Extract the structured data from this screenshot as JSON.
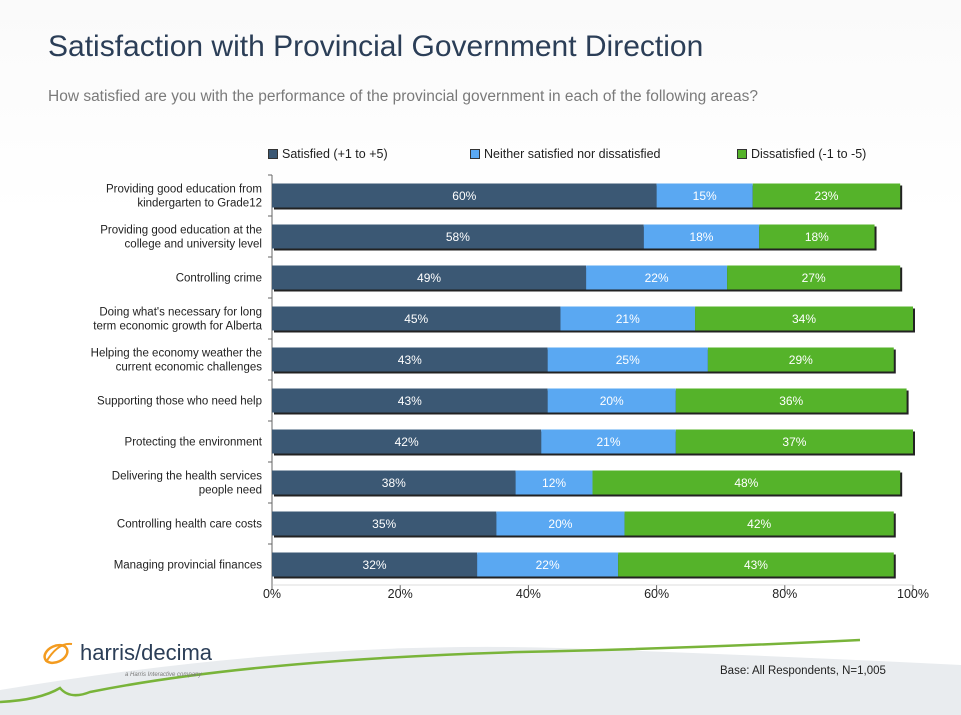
{
  "title": "Satisfaction with Provincial Government Direction",
  "subtitle": "How satisfied are you with the performance of the provincial government in each of the following areas?",
  "footer": {
    "base": "Base: All Respondents, N=1,005",
    "logo_text": "harris/decima",
    "logo_sub": "a Harris Interactive company"
  },
  "colors": {
    "satisfied": "#3b5874",
    "neither": "#5aa8f2",
    "dissatisfied": "#55b32a"
  },
  "chart_data": {
    "type": "bar",
    "orientation": "horizontal",
    "stacked": true,
    "categories": [
      "Providing good education from kindergarten to Grade12",
      "Providing good education at the college and university level",
      "Controlling crime",
      "Doing what's necessary for long term economic growth for Alberta",
      "Helping the economy weather the current economic challenges",
      "Supporting those who need help",
      "Protecting the environment",
      "Delivering the health services people need",
      "Controlling health care costs",
      "Managing provincial finances"
    ],
    "series": [
      {
        "name": "Satisfied (+1 to +5)",
        "values": [
          60,
          58,
          49,
          45,
          43,
          43,
          42,
          38,
          35,
          32
        ]
      },
      {
        "name": "Neither satisfied nor dissatisfied",
        "values": [
          15,
          18,
          22,
          21,
          25,
          20,
          21,
          12,
          20,
          22
        ]
      },
      {
        "name": "Dissatisfied (-1 to -5)",
        "values": [
          23,
          18,
          27,
          34,
          29,
          36,
          37,
          48,
          42,
          43
        ]
      }
    ],
    "xlim": [
      0,
      100
    ],
    "xticks": [
      "0%",
      "20%",
      "40%",
      "60%",
      "80%",
      "100%"
    ],
    "value_suffix": "%",
    "legend_position": "top"
  }
}
